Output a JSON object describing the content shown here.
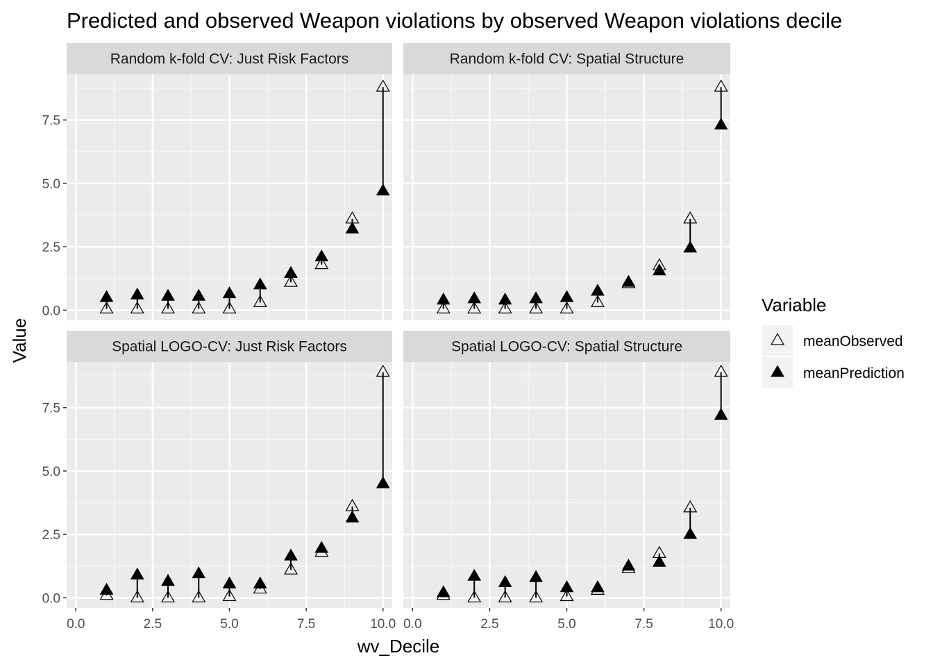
{
  "chart_data": {
    "type": "scatter",
    "title": "Predicted and observed Weapon violations by observed Weapon violations decile",
    "xlabel": "wv_Decile",
    "ylabel": "Value",
    "xlim": [
      -0.3,
      10.3
    ],
    "ylim": [
      -0.4,
      9.3
    ],
    "x_ticks": [
      0,
      2.5,
      5,
      7.5,
      10
    ],
    "x_tick_labels": [
      "0.0",
      "2.5",
      "5.0",
      "7.5",
      "10.0"
    ],
    "y_ticks": [
      0,
      2.5,
      5,
      7.5
    ],
    "y_tick_labels": [
      "0.0",
      "2.5",
      "5.0",
      "7.5"
    ],
    "legend": {
      "title": "Variable",
      "position": "right",
      "entries": [
        {
          "label": "meanObserved",
          "shape": "open-triangle"
        },
        {
          "label": "meanPrediction",
          "shape": "filled-triangle"
        }
      ]
    },
    "panels": [
      {
        "label": "Random k-fold CV: Just Risk Factors",
        "x": [
          1,
          2,
          3,
          4,
          5,
          6,
          7,
          8,
          9,
          10
        ],
        "meanObserved": [
          0.05,
          0.05,
          0.05,
          0.05,
          0.05,
          0.3,
          1.1,
          1.8,
          3.6,
          8.8
        ],
        "meanPrediction": [
          0.5,
          0.6,
          0.55,
          0.55,
          0.65,
          1.0,
          1.45,
          2.1,
          3.2,
          4.7
        ]
      },
      {
        "label": "Random k-fold CV: Spatial Structure",
        "x": [
          1,
          2,
          3,
          4,
          5,
          6,
          7,
          8,
          9,
          10
        ],
        "meanObserved": [
          0.05,
          0.05,
          0.05,
          0.05,
          0.05,
          0.3,
          1.05,
          1.75,
          3.6,
          8.8
        ],
        "meanPrediction": [
          0.4,
          0.45,
          0.4,
          0.45,
          0.5,
          0.75,
          1.1,
          1.55,
          2.45,
          7.3
        ]
      },
      {
        "label": "Spatial LOGO-CV: Just Risk Factors",
        "x": [
          1,
          2,
          3,
          4,
          5,
          6,
          7,
          8,
          9,
          10
        ],
        "meanObserved": [
          0.1,
          0.0,
          0.0,
          0.0,
          0.05,
          0.35,
          1.1,
          1.8,
          3.6,
          8.9
        ],
        "meanPrediction": [
          0.3,
          0.9,
          0.65,
          0.95,
          0.55,
          0.55,
          1.65,
          1.95,
          3.15,
          4.5
        ]
      },
      {
        "label": "Spatial LOGO-CV: Spatial Structure",
        "x": [
          1,
          2,
          3,
          4,
          5,
          6,
          7,
          8,
          9,
          10
        ],
        "meanObserved": [
          0.1,
          0.0,
          0.0,
          0.0,
          0.05,
          0.3,
          1.15,
          1.75,
          3.55,
          8.9
        ],
        "meanPrediction": [
          0.2,
          0.85,
          0.6,
          0.8,
          0.4,
          0.4,
          1.25,
          1.4,
          2.5,
          7.2
        ]
      }
    ]
  }
}
